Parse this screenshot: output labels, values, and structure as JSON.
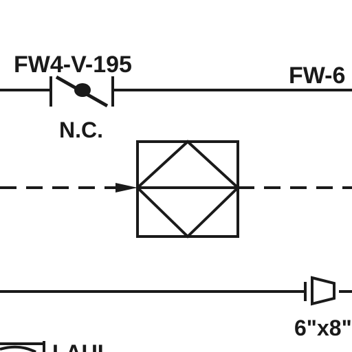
{
  "labels": {
    "valve_tag": "FW4-V-195",
    "line_tag": "FW-6",
    "valve_state": "N.C.",
    "reducer_size": "6\"x8\"",
    "bottom_left_text": "LAUL"
  },
  "colors": {
    "ink": "#1a1a1a",
    "background": "#ffffff"
  },
  "icons": {
    "valve": "normally-closed-valve-icon",
    "equipment": "diamond-in-square-icon",
    "reducer": "concentric-reducer-icon",
    "flow_arrow": "flow-arrow-icon"
  }
}
